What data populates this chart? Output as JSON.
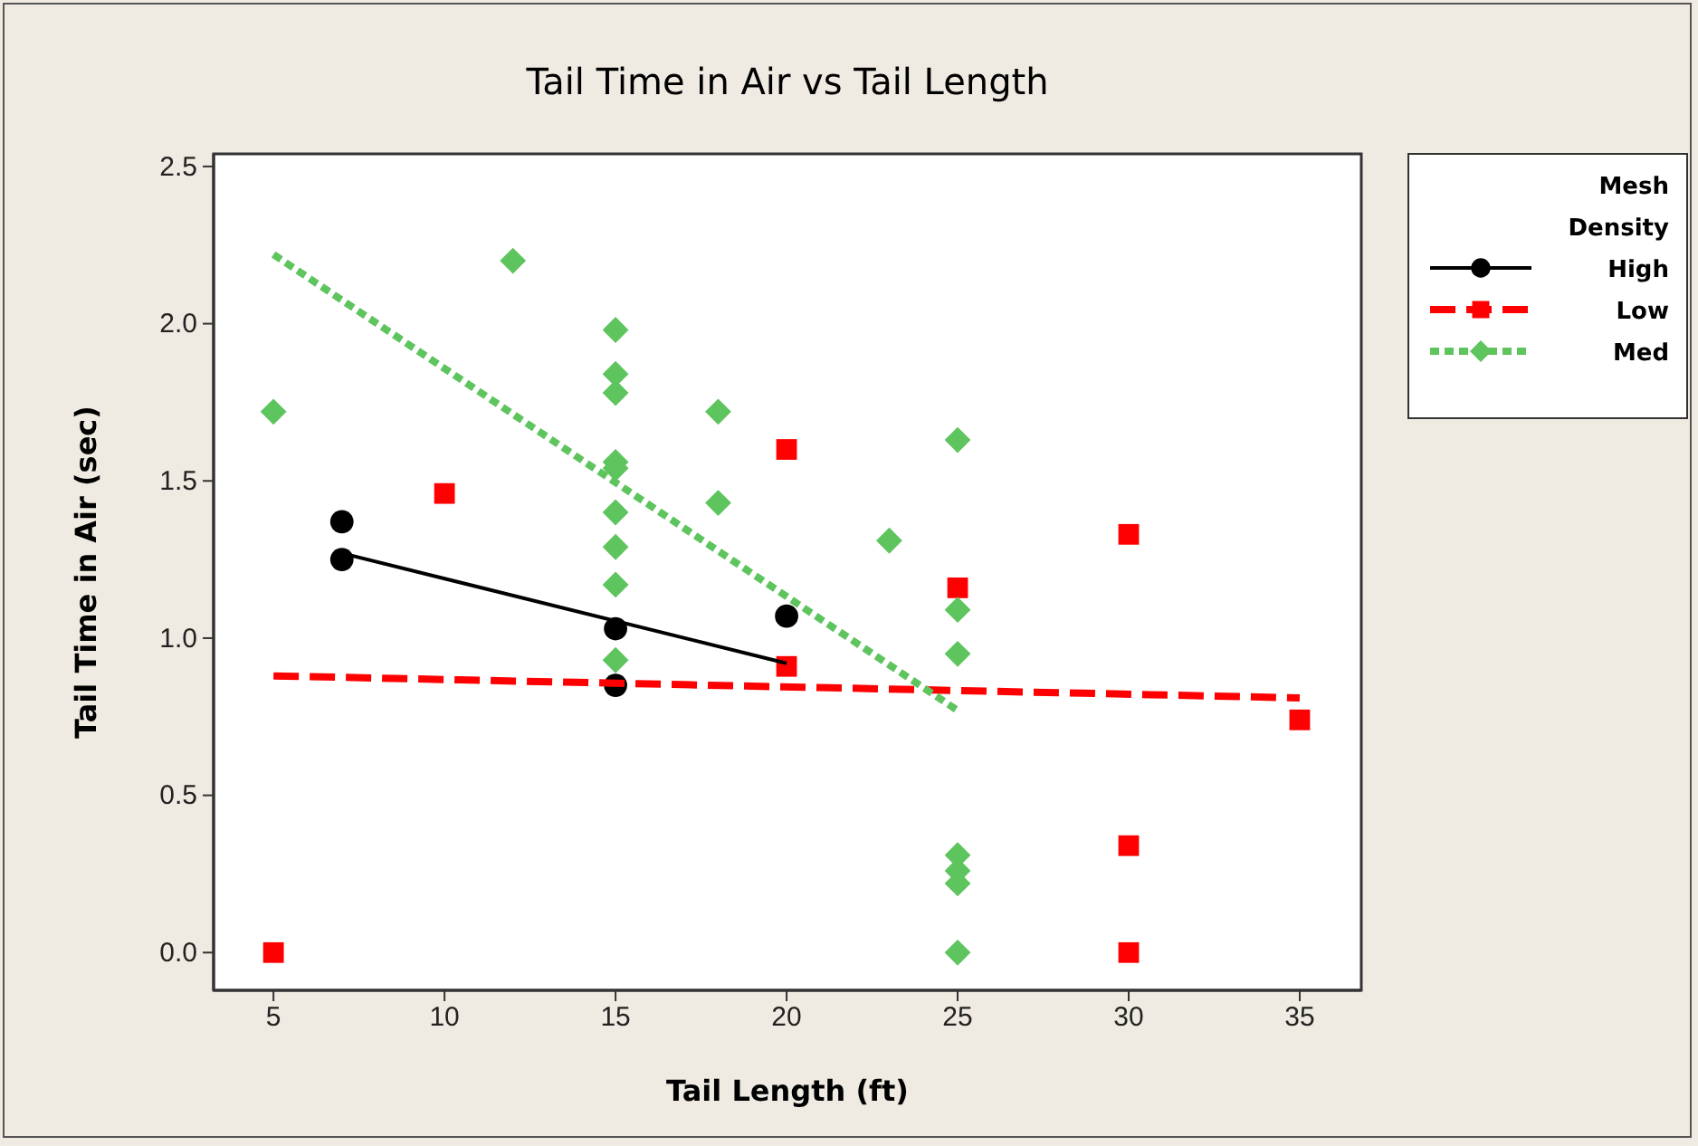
{
  "chart_data": {
    "type": "scatter",
    "title": "Tail Time in Air vs Tail Length",
    "xlabel": "Tail Length (ft)",
    "ylabel": "Tail Time in Air (sec)",
    "legend_title": "Mesh Density",
    "legend": "right",
    "grid": false,
    "xlim": [
      3.25,
      36.8
    ],
    "xticks": [
      5,
      10,
      15,
      20,
      25,
      30,
      35
    ],
    "ylim": [
      -0.12,
      2.54
    ],
    "yticks": [
      {
        "value": 0,
        "label": "0.0"
      },
      {
        "value": 0.5,
        "label": "0.5"
      },
      {
        "value": 1,
        "label": "1.0"
      },
      {
        "value": 1.5,
        "label": "1.5"
      },
      {
        "value": 2,
        "label": "2.0"
      },
      {
        "value": 2.5,
        "label": "2.5"
      }
    ],
    "series": [
      {
        "name": "High",
        "color": "#000000",
        "marker": "circle",
        "line_style": "solid",
        "x": [
          7,
          7,
          15,
          15,
          20
        ],
        "values": [
          1.37,
          1.25,
          1.03,
          0.85,
          1.07
        ]
      },
      {
        "name": "Low",
        "color": "#ff0000",
        "marker": "square",
        "line_style": "dashed",
        "x": [
          5,
          10,
          20,
          20,
          25,
          30,
          30,
          30,
          35
        ],
        "values": [
          0,
          1.46,
          1.6,
          0.91,
          1.16,
          1.33,
          0.34,
          0,
          0.74
        ]
      },
      {
        "name": "Med",
        "color": "#5ec45e",
        "marker": "diamond",
        "line_style": "dotted",
        "x": [
          5,
          12,
          15,
          15,
          15,
          15,
          15,
          15,
          15,
          15,
          15,
          18,
          18,
          23,
          25,
          25,
          25,
          25,
          25,
          25,
          25
        ],
        "values": [
          1.72,
          2.2,
          1.98,
          1.84,
          1.78,
          1.56,
          1.54,
          1.4,
          1.29,
          1.17,
          0.93,
          1.72,
          1.43,
          1.31,
          1.63,
          1.09,
          0.95,
          0.31,
          0.26,
          0.22,
          0
        ]
      },
      {
        "type": "line",
        "color": "#000000",
        "line_style": "solid",
        "marker": "none",
        "x": [
          7,
          20
        ],
        "values": [
          1.27,
          0.92
        ]
      },
      {
        "type": "line",
        "color": "#ff0000",
        "line_style": "dashed",
        "marker": "none",
        "x": [
          5,
          35
        ],
        "values": [
          0.88,
          0.81
        ]
      },
      {
        "type": "line",
        "color": "#5ec45e",
        "line_style": "dotted",
        "marker": "none",
        "x": [
          5,
          25
        ],
        "values": [
          2.22,
          0.77
        ]
      }
    ]
  }
}
